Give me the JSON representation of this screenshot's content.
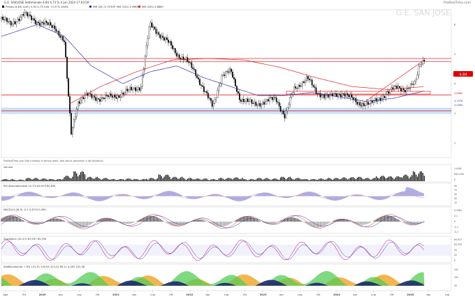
{
  "header": {
    "title": "G.E. SAN JOSE Settimanale 4,84 4,73 % 4 Jun 2024 17:03:59",
    "brand": "ProRealTime.com",
    "watermark": "G.E. SAN JOSE"
  },
  "legend": {
    "price": "Prezzo (4,84) 4,89 | 4,93 4,73 4,84 +2,97% 04/06",
    "ma1": "MM (50) 3,7576",
    "ma2": "MM (100) 3,9986",
    "ma3": "MM (200) 3,8880",
    "source": "ProRealTime.com  Dati intraday in tempo reale, dati storici giornalieri e dei dividendi"
  },
  "colors": {
    "up": "#ffffff",
    "down": "#000000",
    "ma50": "#3333aa",
    "ma100": "#dd2222",
    "ma200": "#bbbbbb",
    "hline": "#dd0000",
    "zone": "#cfe4fb",
    "badge": "#dd0000"
  },
  "panels": {
    "volume": {
      "title": "Volume",
      "labels": [
        "1.00M",
        "500.000",
        "0"
      ]
    },
    "rsi": {
      "title": "RSI Avanzato(close 14,70) 84,919 60,634",
      "labels": [
        "90",
        "70",
        "50",
        "30",
        "10"
      ]
    },
    "macd": {
      "title": "MACD(12,26,9) -0,1 0,3374 0,359",
      "labels": [
        "0,3584",
        "0,1",
        "0",
        "-0,1",
        "-0,3"
      ]
    },
    "stoch": {
      "title": "Stocastico (14,3,5) 89,937 83,535",
      "labels": [
        "89,937",
        "83,535",
        "50",
        "20",
        "0"
      ]
    },
    "sentiment": {
      "title": "StatMovimento + 6% 121,51 100,95 123,22 89,11 4,492 152,38",
      "labels": [
        "150",
        "100",
        "50"
      ]
    }
  },
  "price_axis_labels": [
    "6",
    "5",
    "4",
    "3",
    "2"
  ],
  "badges": {
    "price": "4,84",
    "level1": "3,8880",
    "level2": "3,7576",
    "level3": "3,4584"
  },
  "x_labels": [
    "Ago",
    "Ott",
    "2020",
    "Apr",
    "Lug",
    "Ott",
    "2021",
    "Apr",
    "Lug",
    "Ott",
    "2022",
    "Apr",
    "Lug",
    "Ott",
    "2023",
    "Apr",
    "Lug",
    "Ott",
    "2024",
    "Apr",
    "Lug",
    "Ott",
    "2025",
    "Apr",
    "Lug"
  ],
  "chart_data": {
    "type": "candlestick",
    "title": "G.E. SAN JOSE",
    "timeframe": "Settimanale",
    "ylim": [
      1.5,
      6.5
    ],
    "last": 4.84,
    "horizontal_levels": [
      4.85,
      4.75,
      3.62,
      3.08
    ],
    "support_zone": [
      3.36,
      3.5
    ],
    "trendline": {
      "from": [
        0.8,
        3.3
      ],
      "to": [
        0.94,
        4.8
      ]
    },
    "series": [
      {
        "name": "Prezzo",
        "anchors": [
          [
            0.0,
            6.2
          ],
          [
            0.02,
            6.0
          ],
          [
            0.05,
            6.35
          ],
          [
            0.08,
            6.1
          ],
          [
            0.12,
            5.9
          ],
          [
            0.14,
            5.4
          ],
          [
            0.155,
            2.3
          ],
          [
            0.17,
            3.4
          ],
          [
            0.19,
            3.6
          ],
          [
            0.22,
            3.5
          ],
          [
            0.26,
            3.6
          ],
          [
            0.29,
            3.8
          ],
          [
            0.31,
            3.9
          ],
          [
            0.33,
            6.0
          ],
          [
            0.35,
            5.7
          ],
          [
            0.37,
            5.4
          ],
          [
            0.39,
            5.0
          ],
          [
            0.41,
            4.8
          ],
          [
            0.43,
            4.4
          ],
          [
            0.45,
            3.8
          ],
          [
            0.47,
            3.2
          ],
          [
            0.49,
            4.3
          ],
          [
            0.51,
            4.4
          ],
          [
            0.53,
            3.5
          ],
          [
            0.56,
            3.3
          ],
          [
            0.59,
            3.4
          ],
          [
            0.61,
            3.5
          ],
          [
            0.63,
            2.9
          ],
          [
            0.65,
            3.8
          ],
          [
            0.68,
            4.2
          ],
          [
            0.7,
            3.7
          ],
          [
            0.73,
            3.55
          ],
          [
            0.76,
            3.7
          ],
          [
            0.79,
            3.35
          ],
          [
            0.82,
            3.3
          ],
          [
            0.85,
            3.6
          ],
          [
            0.88,
            3.9
          ],
          [
            0.9,
            3.8
          ],
          [
            0.92,
            4.0
          ],
          [
            0.93,
            4.7
          ],
          [
            0.94,
            4.84
          ]
        ]
      },
      {
        "name": "MM (50)",
        "anchors": [
          [
            0.0,
            5.6
          ],
          [
            0.08,
            6.0
          ],
          [
            0.14,
            5.6
          ],
          [
            0.2,
            4.6
          ],
          [
            0.27,
            4.0
          ],
          [
            0.33,
            4.4
          ],
          [
            0.39,
            4.6
          ],
          [
            0.45,
            4.2
          ],
          [
            0.51,
            3.9
          ],
          [
            0.57,
            3.6
          ],
          [
            0.63,
            3.6
          ],
          [
            0.69,
            3.7
          ],
          [
            0.75,
            3.55
          ],
          [
            0.81,
            3.4
          ],
          [
            0.87,
            3.5
          ],
          [
            0.94,
            3.75
          ]
        ]
      },
      {
        "name": "MM (100)",
        "anchors": [
          [
            0.15,
            3.3
          ],
          [
            0.22,
            3.9
          ],
          [
            0.3,
            4.4
          ],
          [
            0.38,
            4.8
          ],
          [
            0.46,
            4.85
          ],
          [
            0.54,
            4.8
          ],
          [
            0.62,
            4.55
          ],
          [
            0.7,
            4.2
          ],
          [
            0.78,
            3.9
          ],
          [
            0.86,
            3.8
          ],
          [
            0.94,
            3.9
          ]
        ]
      }
    ],
    "volume": [
      0.2,
      0.15,
      0.3,
      0.25,
      0.2,
      0.5,
      0.9,
      0.4,
      0.3,
      0.2,
      0.25,
      0.2,
      0.3,
      0.6,
      0.4,
      0.3,
      0.25,
      0.2,
      0.3,
      0.35,
      0.2,
      0.3,
      0.25,
      0.4,
      0.3,
      0.2,
      0.25,
      0.3,
      0.35,
      0.4,
      0.3,
      0.5,
      0.45,
      0.6,
      0.9
    ],
    "rsi": {
      "value": 84.919,
      "signal": 60.634
    },
    "macd": {
      "value": 0.3374,
      "signal": 0.359
    },
    "stochastic": {
      "k": 89.937,
      "d": 83.535
    }
  }
}
